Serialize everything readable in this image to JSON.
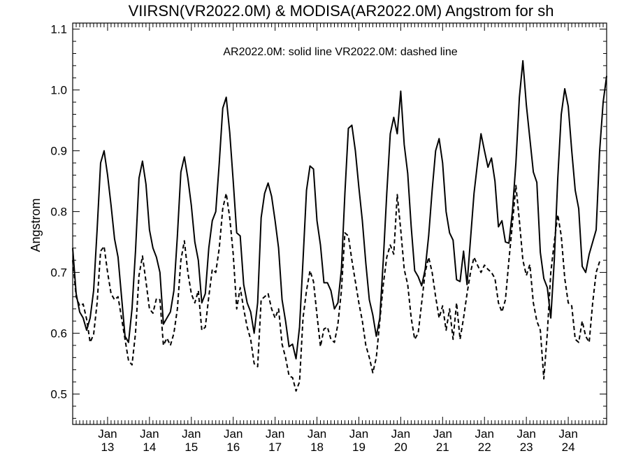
{
  "chart_data": {
    "type": "line",
    "title": "VIIRSN(VR2022.0M) & MODISA(AR2022.0M)  Angstrom for sh",
    "xlabel": "",
    "ylabel": "Angstrom",
    "annotation": "AR2022.0M: solid line   VR2022.0M: dashed line",
    "ylim": [
      0.45,
      1.11
    ],
    "yticks": [
      "0.5",
      "0.6",
      "0.7",
      "0.8",
      "0.9",
      "1.0",
      "1.1"
    ],
    "xticks": [
      {
        "month": "Jan",
        "year": "13"
      },
      {
        "month": "Jan",
        "year": "14"
      },
      {
        "month": "Jan",
        "year": "15"
      },
      {
        "month": "Jan",
        "year": "16"
      },
      {
        "month": "Jan",
        "year": "17"
      },
      {
        "month": "Jan",
        "year": "18"
      },
      {
        "month": "Jan",
        "year": "19"
      },
      {
        "month": "Jan",
        "year": "20"
      },
      {
        "month": "Jan",
        "year": "21"
      },
      {
        "month": "Jan",
        "year": "22"
      },
      {
        "month": "Jan",
        "year": "23"
      },
      {
        "month": "Jan",
        "year": "24"
      }
    ],
    "x_start": "2012-03",
    "x_end": "2024-12",
    "grid": false,
    "series": [
      {
        "name": "AR2022.0M",
        "style": "solid",
        "color": "#000000",
        "values": [
          0.74,
          0.665,
          0.635,
          0.625,
          0.605,
          0.625,
          0.67,
          0.77,
          0.88,
          0.9,
          0.86,
          0.81,
          0.755,
          0.725,
          0.66,
          0.595,
          0.585,
          0.64,
          0.735,
          0.855,
          0.883,
          0.845,
          0.77,
          0.74,
          0.725,
          0.7,
          0.615,
          0.625,
          0.635,
          0.67,
          0.76,
          0.865,
          0.89,
          0.855,
          0.81,
          0.75,
          0.72,
          0.65,
          0.665,
          0.74,
          0.785,
          0.8,
          0.88,
          0.97,
          0.988,
          0.93,
          0.85,
          0.765,
          0.76,
          0.68,
          0.65,
          0.635,
          0.6,
          0.65,
          0.79,
          0.83,
          0.847,
          0.825,
          0.785,
          0.74,
          0.655,
          0.62,
          0.578,
          0.582,
          0.558,
          0.61,
          0.72,
          0.835,
          0.875,
          0.87,
          0.785,
          0.745,
          0.683,
          0.683,
          0.67,
          0.64,
          0.65,
          0.705,
          0.83,
          0.937,
          0.942,
          0.9,
          0.84,
          0.785,
          0.715,
          0.655,
          0.63,
          0.595,
          0.625,
          0.72,
          0.83,
          0.928,
          0.955,
          0.928,
          0.998,
          0.91,
          0.863,
          0.775,
          0.703,
          0.693,
          0.678,
          0.705,
          0.76,
          0.835,
          0.9,
          0.92,
          0.88,
          0.8,
          0.765,
          0.753,
          0.688,
          0.685,
          0.735,
          0.68,
          0.755,
          0.83,
          0.88,
          0.928,
          0.9,
          0.873,
          0.888,
          0.85,
          0.775,
          0.785,
          0.75,
          0.748,
          0.8,
          0.88,
          0.988,
          1.048,
          0.975,
          0.92,
          0.865,
          0.848,
          0.733,
          0.69,
          0.675,
          0.625,
          0.72,
          0.855,
          0.96,
          1.002,
          0.973,
          0.9,
          0.835,
          0.805,
          0.71,
          0.7,
          0.73,
          0.75,
          0.77,
          0.9,
          0.98,
          1.023
        ]
      },
      {
        "name": "VR2022.0M",
        "style": "dashed",
        "color": "#000000",
        "values": [
          0.72,
          0.66,
          0.645,
          0.648,
          0.623,
          0.585,
          0.598,
          0.65,
          0.735,
          0.743,
          0.7,
          0.665,
          0.655,
          0.66,
          0.625,
          0.59,
          0.555,
          0.548,
          0.6,
          0.695,
          0.727,
          0.685,
          0.64,
          0.633,
          0.657,
          0.655,
          0.58,
          0.592,
          0.58,
          0.6,
          0.64,
          0.72,
          0.752,
          0.7,
          0.665,
          0.65,
          0.67,
          0.605,
          0.61,
          0.66,
          0.705,
          0.7,
          0.74,
          0.805,
          0.83,
          0.79,
          0.73,
          0.64,
          0.675,
          0.64,
          0.61,
          0.59,
          0.55,
          0.545,
          0.655,
          0.66,
          0.665,
          0.64,
          0.625,
          0.64,
          0.582,
          0.56,
          0.53,
          0.527,
          0.505,
          0.52,
          0.625,
          0.67,
          0.703,
          0.685,
          0.63,
          0.578,
          0.607,
          0.61,
          0.59,
          0.585,
          0.615,
          0.67,
          0.765,
          0.76,
          0.72,
          0.685,
          0.65,
          0.62,
          0.58,
          0.56,
          0.535,
          0.56,
          0.62,
          0.68,
          0.725,
          0.745,
          0.73,
          0.828,
          0.77,
          0.705,
          0.68,
          0.625,
          0.59,
          0.6,
          0.65,
          0.7,
          0.725,
          0.7,
          0.66,
          0.625,
          0.645,
          0.605,
          0.64,
          0.59,
          0.65,
          0.59,
          0.625,
          0.665,
          0.7,
          0.725,
          0.712,
          0.7,
          0.712,
          0.705,
          0.7,
          0.69,
          0.65,
          0.635,
          0.655,
          0.72,
          0.78,
          0.843,
          0.785,
          0.72,
          0.695,
          0.713,
          0.65,
          0.62,
          0.605,
          0.525,
          0.6,
          0.7,
          0.75,
          0.795,
          0.76,
          0.69,
          0.65,
          0.645,
          0.59,
          0.585,
          0.62,
          0.595,
          0.585,
          0.65,
          0.7,
          0.718
        ]
      }
    ]
  }
}
